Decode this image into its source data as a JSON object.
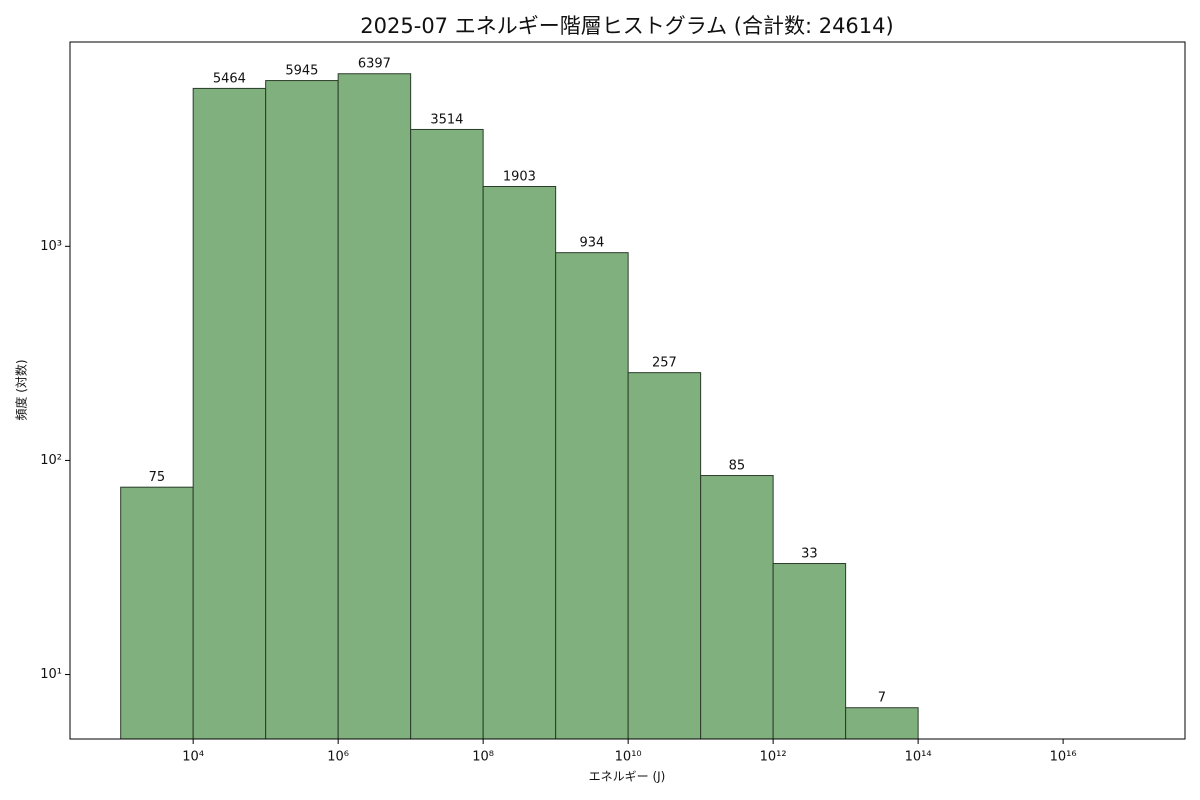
{
  "chart_data": {
    "type": "histogram",
    "title": "2025-07 エネルギー階層ヒストグラム (合計数: 24614)",
    "x_label": "エネルギー (J)",
    "y_label": "頻度 (対数)",
    "bins": [
      1000,
      10000,
      100000,
      1000000,
      10000000,
      100000000,
      1000000000,
      10000000000,
      100000000000,
      1000000000000,
      10000000000000,
      100000000000000
    ],
    "values": [
      75,
      5464,
      5945,
      6397,
      3514,
      1903,
      934,
      257,
      85,
      33,
      7
    ],
    "color": "#80b07d",
    "edge_color": "#2b3b2b",
    "x_log": true,
    "y_log": true,
    "xlim": [
      200,
      480000000000000000
    ],
    "ylim": [
      5,
      9000
    ],
    "xticks": [
      {
        "value": 10000,
        "label": "10⁴"
      },
      {
        "value": 1000000,
        "label": "10⁶"
      },
      {
        "value": 100000000,
        "label": "10⁸"
      },
      {
        "value": 10000000000,
        "label": "10¹⁰"
      },
      {
        "value": 1000000000000,
        "label": "10¹²"
      },
      {
        "value": 100000000000000,
        "label": "10¹⁴"
      },
      {
        "value": 10000000000000000,
        "label": "10¹⁶"
      }
    ],
    "yticks": [
      {
        "value": 10,
        "label": "10¹"
      },
      {
        "value": 100,
        "label": "10²"
      },
      {
        "value": 1000,
        "label": "10³"
      }
    ]
  }
}
